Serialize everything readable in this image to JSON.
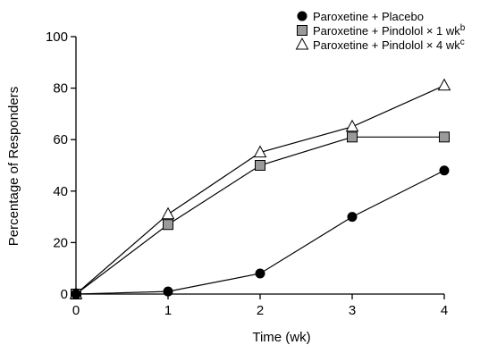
{
  "chart_data": {
    "type": "line",
    "x": [
      0,
      1,
      2,
      3,
      4
    ],
    "xlabel": "Time (wk)",
    "ylabel": "Percentage of Responders",
    "xlim": [
      0,
      4
    ],
    "ylim": [
      0,
      100
    ],
    "xticks": [
      "0",
      "1",
      "2",
      "3",
      "4"
    ],
    "yticks": [
      "0",
      "20",
      "40",
      "60",
      "80",
      "100"
    ],
    "grid": false,
    "legend_position": "top-right",
    "series": [
      {
        "name": "Paroxetine + Placebo",
        "superscript": "",
        "marker": "circle-filled",
        "values": [
          0,
          1,
          8,
          30,
          48
        ]
      },
      {
        "name": "Paroxetine + Pindolol × 1 wk",
        "superscript": "b",
        "marker": "square-gray",
        "values": [
          0,
          27,
          50,
          61,
          61
        ]
      },
      {
        "name": "Paroxetine + Pindolol × 4 wk",
        "superscript": "c",
        "marker": "triangle-open",
        "values": [
          0,
          31,
          55,
          65,
          81
        ]
      }
    ]
  }
}
